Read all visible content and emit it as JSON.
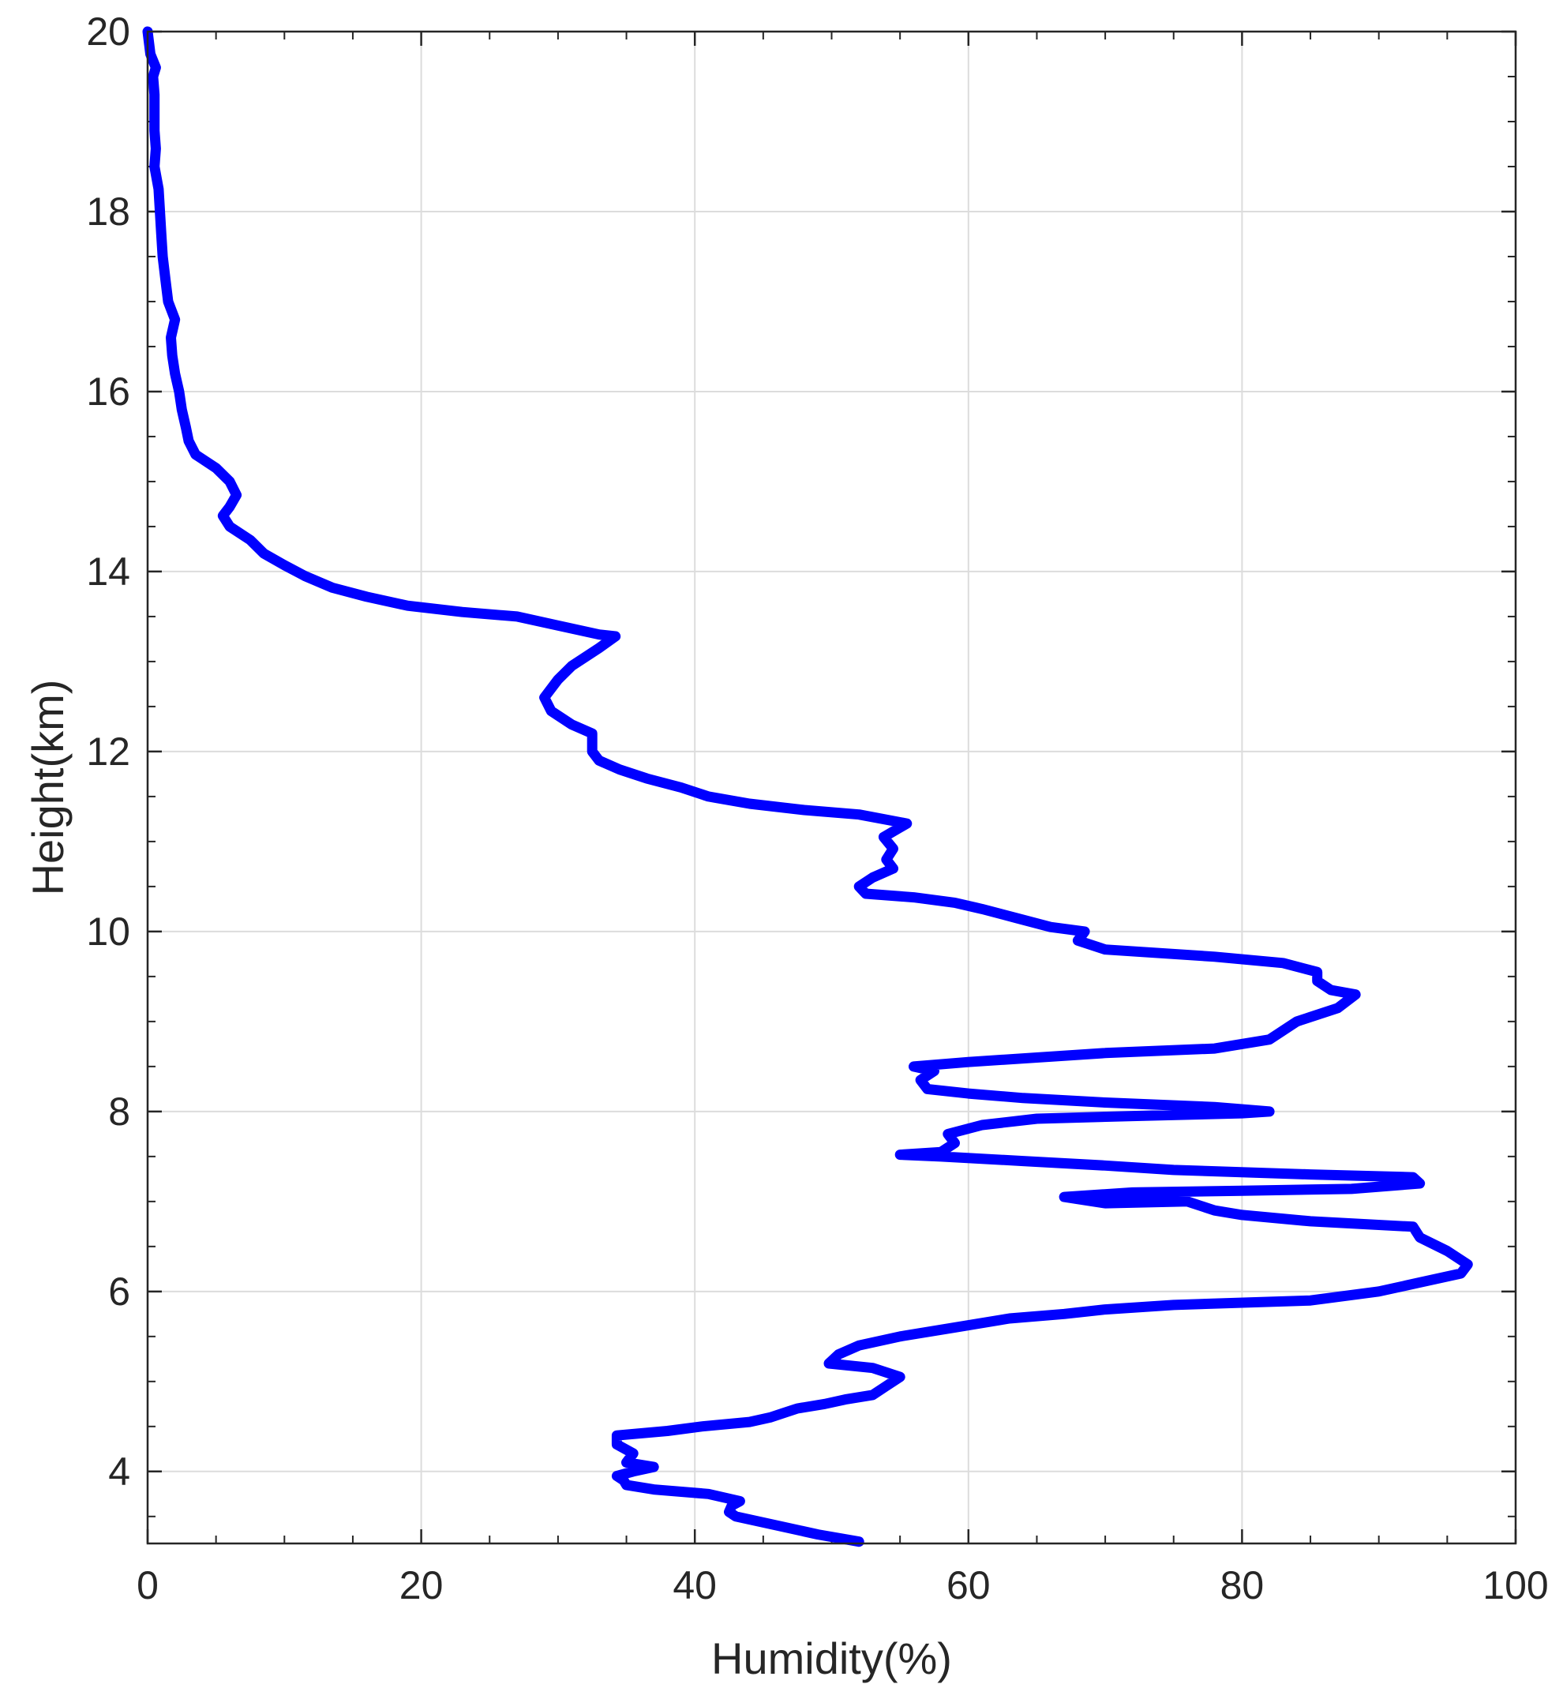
{
  "chart_data": {
    "type": "line",
    "title": "",
    "xlabel": "Humidity(%)",
    "ylabel": "Height(km)",
    "xlim": [
      0,
      100
    ],
    "ylim": [
      3.2,
      20
    ],
    "xticks": [
      0,
      20,
      40,
      60,
      80,
      100
    ],
    "yticks": [
      4,
      6,
      8,
      10,
      12,
      14,
      16,
      18,
      20
    ],
    "grid": true,
    "line_color": "#0000ff",
    "series": [
      {
        "points": [
          [
            52.0,
            3.22
          ],
          [
            49.0,
            3.3
          ],
          [
            46.0,
            3.4
          ],
          [
            43.0,
            3.5
          ],
          [
            42.5,
            3.55
          ],
          [
            42.7,
            3.62
          ],
          [
            43.3,
            3.67
          ],
          [
            41.0,
            3.75
          ],
          [
            37.0,
            3.8
          ],
          [
            35.0,
            3.85
          ],
          [
            34.8,
            3.9
          ],
          [
            34.3,
            3.95
          ],
          [
            35.5,
            4.0
          ],
          [
            37.0,
            4.05
          ],
          [
            35.0,
            4.1
          ],
          [
            35.5,
            4.2
          ],
          [
            34.3,
            4.3
          ],
          [
            34.3,
            4.4
          ],
          [
            38.0,
            4.45
          ],
          [
            40.5,
            4.5
          ],
          [
            44.0,
            4.55
          ],
          [
            45.5,
            4.6
          ],
          [
            46.5,
            4.65
          ],
          [
            47.5,
            4.7
          ],
          [
            49.5,
            4.75
          ],
          [
            51.0,
            4.8
          ],
          [
            53.0,
            4.85
          ],
          [
            54.0,
            4.95
          ],
          [
            55.0,
            5.05
          ],
          [
            53.0,
            5.15
          ],
          [
            49.8,
            5.2
          ],
          [
            50.5,
            5.3
          ],
          [
            52.0,
            5.4
          ],
          [
            55.0,
            5.5
          ],
          [
            59.0,
            5.6
          ],
          [
            63.0,
            5.7
          ],
          [
            67.0,
            5.75
          ],
          [
            70.0,
            5.8
          ],
          [
            75.0,
            5.85
          ],
          [
            85.0,
            5.9
          ],
          [
            90.0,
            6.0
          ],
          [
            93.0,
            6.1
          ],
          [
            96.0,
            6.2
          ],
          [
            96.5,
            6.3
          ],
          [
            95.0,
            6.45
          ],
          [
            93.0,
            6.6
          ],
          [
            92.5,
            6.72
          ],
          [
            85.0,
            6.78
          ],
          [
            80.0,
            6.85
          ],
          [
            78.0,
            6.9
          ],
          [
            76.0,
            7.0
          ],
          [
            70.0,
            6.98
          ],
          [
            67.0,
            7.05
          ],
          [
            72.0,
            7.1
          ],
          [
            80.0,
            7.12
          ],
          [
            88.0,
            7.14
          ],
          [
            93.0,
            7.2
          ],
          [
            92.5,
            7.27
          ],
          [
            85.0,
            7.3
          ],
          [
            75.0,
            7.35
          ],
          [
            70.0,
            7.4
          ],
          [
            64.0,
            7.45
          ],
          [
            58.0,
            7.5
          ],
          [
            55.0,
            7.52
          ],
          [
            58.0,
            7.55
          ],
          [
            59.0,
            7.65
          ],
          [
            58.5,
            7.75
          ],
          [
            61.0,
            7.85
          ],
          [
            65.0,
            7.92
          ],
          [
            72.0,
            7.95
          ],
          [
            80.0,
            7.98
          ],
          [
            82.0,
            8.0
          ],
          [
            78.0,
            8.05
          ],
          [
            70.0,
            8.1
          ],
          [
            64.0,
            8.15
          ],
          [
            60.0,
            8.2
          ],
          [
            57.0,
            8.25
          ],
          [
            56.5,
            8.35
          ],
          [
            57.5,
            8.45
          ],
          [
            56.0,
            8.5
          ],
          [
            60.0,
            8.55
          ],
          [
            65.0,
            8.6
          ],
          [
            70.0,
            8.65
          ],
          [
            78.0,
            8.7
          ],
          [
            82.0,
            8.8
          ],
          [
            83.0,
            8.9
          ],
          [
            84.0,
            9.0
          ],
          [
            85.0,
            9.05
          ],
          [
            87.0,
            9.15
          ],
          [
            88.3,
            9.3
          ],
          [
            86.5,
            9.35
          ],
          [
            85.5,
            9.45
          ],
          [
            85.5,
            9.55
          ],
          [
            83.0,
            9.65
          ],
          [
            78.0,
            9.72
          ],
          [
            70.0,
            9.8
          ],
          [
            68.0,
            9.9
          ],
          [
            68.5,
            10.0
          ],
          [
            66.0,
            10.05
          ],
          [
            63.5,
            10.15
          ],
          [
            61.0,
            10.25
          ],
          [
            59.0,
            10.32
          ],
          [
            56.0,
            10.38
          ],
          [
            52.5,
            10.42
          ],
          [
            52.0,
            10.5
          ],
          [
            53.0,
            10.6
          ],
          [
            54.5,
            10.7
          ],
          [
            54.0,
            10.8
          ],
          [
            54.5,
            10.92
          ],
          [
            53.8,
            11.05
          ],
          [
            55.5,
            11.2
          ],
          [
            52.0,
            11.3
          ],
          [
            48.0,
            11.35
          ],
          [
            44.0,
            11.42
          ],
          [
            41.0,
            11.5
          ],
          [
            39.0,
            11.6
          ],
          [
            36.5,
            11.7
          ],
          [
            34.5,
            11.8
          ],
          [
            33.0,
            11.9
          ],
          [
            32.5,
            12.0
          ],
          [
            32.5,
            12.2
          ],
          [
            31.0,
            12.3
          ],
          [
            29.5,
            12.45
          ],
          [
            29.0,
            12.6
          ],
          [
            30.0,
            12.8
          ],
          [
            31.0,
            12.95
          ],
          [
            33.0,
            13.15
          ],
          [
            34.2,
            13.28
          ],
          [
            33.0,
            13.3
          ],
          [
            30.0,
            13.4
          ],
          [
            27.0,
            13.5
          ],
          [
            23.0,
            13.55
          ],
          [
            19.0,
            13.62
          ],
          [
            16.0,
            13.72
          ],
          [
            13.5,
            13.82
          ],
          [
            11.5,
            13.95
          ],
          [
            10.0,
            14.07
          ],
          [
            8.5,
            14.2
          ],
          [
            7.5,
            14.35
          ],
          [
            6.0,
            14.5
          ],
          [
            5.5,
            14.62
          ],
          [
            6.0,
            14.72
          ],
          [
            6.5,
            14.85
          ],
          [
            6.0,
            15.0
          ],
          [
            5.0,
            15.15
          ],
          [
            3.5,
            15.3
          ],
          [
            3.0,
            15.45
          ],
          [
            2.8,
            15.6
          ],
          [
            2.5,
            15.8
          ],
          [
            2.3,
            16.0
          ],
          [
            2.0,
            16.2
          ],
          [
            1.8,
            16.4
          ],
          [
            1.7,
            16.6
          ],
          [
            2.0,
            16.8
          ],
          [
            1.5,
            17.0
          ],
          [
            1.3,
            17.25
          ],
          [
            1.1,
            17.5
          ],
          [
            1.0,
            17.75
          ],
          [
            0.9,
            18.0
          ],
          [
            0.8,
            18.25
          ],
          [
            0.5,
            18.5
          ],
          [
            0.6,
            18.7
          ],
          [
            0.5,
            18.9
          ],
          [
            0.5,
            19.1
          ],
          [
            0.5,
            19.3
          ],
          [
            0.4,
            19.5
          ],
          [
            0.6,
            19.6
          ],
          [
            0.2,
            19.75
          ],
          [
            0.0,
            20.0
          ]
        ]
      }
    ]
  }
}
